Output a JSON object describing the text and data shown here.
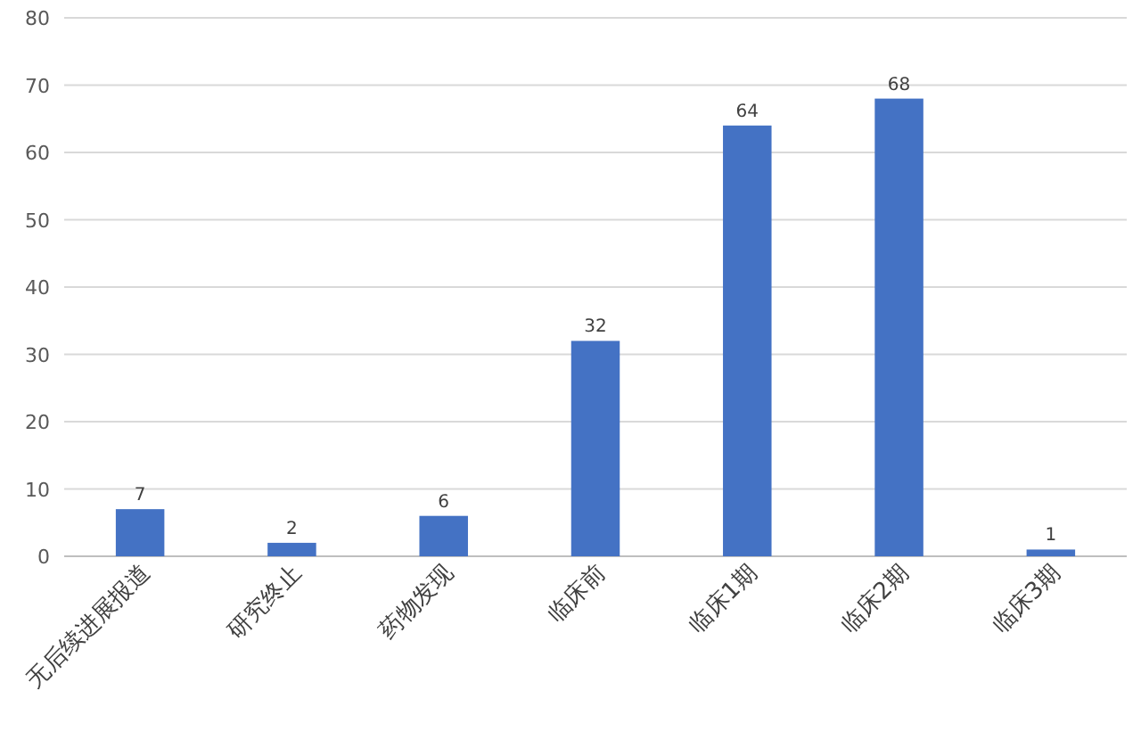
{
  "chart_data": {
    "type": "bar",
    "categories": [
      "无后续进展报道",
      "研究终止",
      "药物发现",
      "临床前",
      "临床1期",
      "临床2期",
      "临床3期"
    ],
    "values": [
      7,
      2,
      6,
      32,
      64,
      68,
      1
    ],
    "color": "#4472c4",
    "ylim": [
      0,
      80
    ],
    "yticks": [
      0,
      10,
      20,
      30,
      40,
      50,
      60,
      70,
      80
    ],
    "grid": "y",
    "data_labels": true
  }
}
